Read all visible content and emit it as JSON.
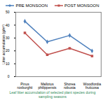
{
  "chart_data": {
    "type": "line",
    "y_label": "Litter accumulation (g/m²)",
    "caption": "Leaf litter accumulation of selected plant species during sampling seasons",
    "categories": [
      "Pinus roxburghii",
      "Mallotus philippensis",
      "Shorea robusta",
      "Woodfordia fruticosa"
    ],
    "series": [
      {
        "name": "PRE MONSOON",
        "color": "#4f81bd",
        "marker": "diamond",
        "values": [
          43,
          27,
          32,
          20
        ]
      },
      {
        "name": "POST MONSOON",
        "color": "#c0504d",
        "marker": "square",
        "values": [
          34,
          17,
          22,
          16
        ]
      }
    ],
    "ylim": [
      0,
      50
    ],
    "yticks": [
      0,
      10,
      20,
      30,
      40,
      50
    ],
    "grid": false,
    "legend": "top"
  }
}
